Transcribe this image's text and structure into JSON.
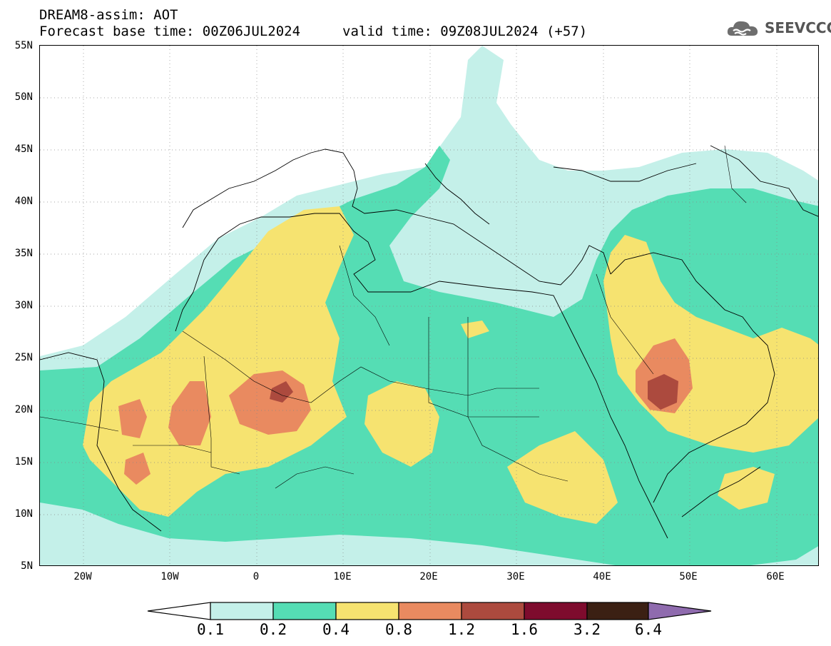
{
  "header": {
    "title": "DREAM8-assim: AOT",
    "base_time": "Forecast base time: 00Z06JUL2024",
    "valid_time": "valid time: 09Z08JUL2024 (+57)"
  },
  "logo": {
    "text": "SEEVCCC",
    "icon": "cloud-logo-icon"
  },
  "map": {
    "lat_labels": [
      "55N",
      "50N",
      "45N",
      "40N",
      "35N",
      "30N",
      "25N",
      "20N",
      "15N",
      "10N",
      "5N"
    ],
    "lon_labels": [
      "20W",
      "10W",
      "0",
      "10E",
      "20E",
      "30E",
      "40E",
      "50E",
      "60E"
    ],
    "lon_range": [
      -25,
      65
    ],
    "lat_range": [
      5,
      55
    ],
    "grid": "dotted"
  },
  "colorbar": {
    "labels": [
      "0.1",
      "0.2",
      "0.4",
      "0.8",
      "1.2",
      "1.6",
      "3.2",
      "6.4"
    ],
    "colors": [
      "#ffffff",
      "#c4f0e9",
      "#55ddb4",
      "#f6e370",
      "#e98a60",
      "#ac4a3e",
      "#7e0b2d",
      "#3b2013",
      "#8f6bae"
    ]
  }
}
